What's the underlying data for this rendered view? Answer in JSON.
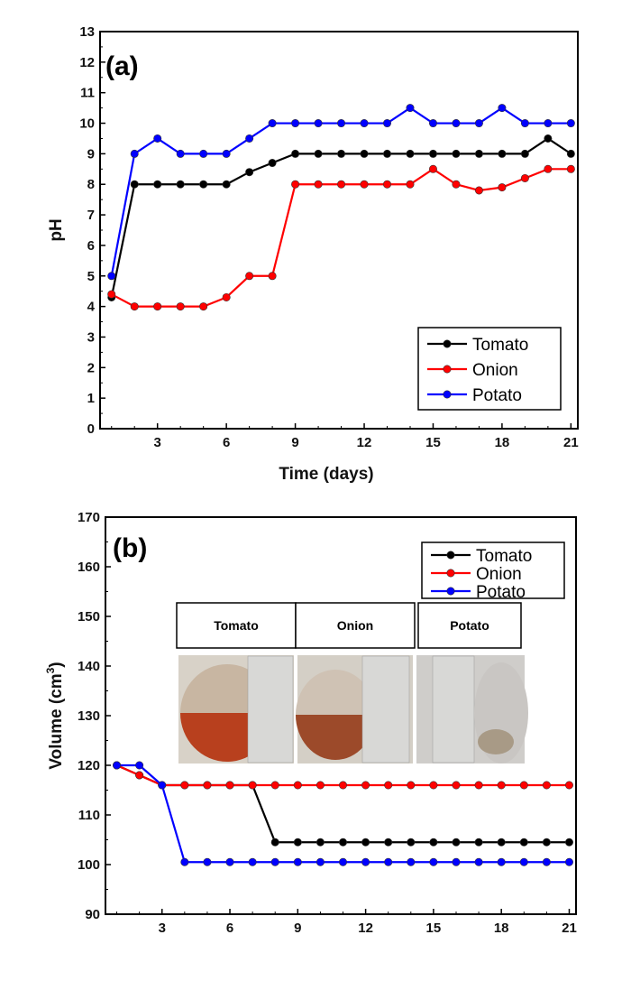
{
  "chart_data": [
    {
      "type": "line",
      "panel_label": "(a)",
      "xlabel": "Time (days)",
      "ylabel": "pH",
      "xlim": [
        0.5,
        21.3
      ],
      "ylim": [
        0,
        13
      ],
      "xticks": [
        3,
        6,
        9,
        12,
        15,
        18,
        21
      ],
      "yticks": [
        0,
        1,
        2,
        3,
        4,
        5,
        6,
        7,
        8,
        9,
        10,
        11,
        12,
        13
      ],
      "legend_position": "bottom-right",
      "grid": false,
      "x": [
        1,
        2,
        3,
        4,
        5,
        6,
        7,
        8,
        9,
        10,
        11,
        12,
        13,
        14,
        15,
        16,
        17,
        18,
        19,
        20,
        21
      ],
      "series": [
        {
          "name": "Tomato",
          "color": "#000000",
          "values": [
            4.3,
            8,
            8,
            8,
            8,
            8,
            8.4,
            8.7,
            9,
            9,
            9,
            9,
            9,
            9,
            9,
            9,
            9,
            9,
            9,
            9.5,
            9
          ]
        },
        {
          "name": "Onion",
          "color": "#ff0000",
          "values": [
            4.4,
            4,
            4,
            4,
            4,
            4.3,
            5,
            5,
            8,
            8,
            8,
            8,
            8,
            8,
            8.5,
            8,
            7.8,
            7.9,
            8.2,
            8.5,
            8.5
          ]
        },
        {
          "name": "Potato",
          "color": "#0000ff",
          "values": [
            5,
            9,
            9.5,
            9,
            9,
            9,
            9.5,
            10,
            10,
            10,
            10,
            10,
            10,
            10.5,
            10,
            10,
            10,
            10.5,
            10,
            10,
            10
          ]
        }
      ]
    },
    {
      "type": "line",
      "panel_label": "(b)",
      "xlabel": "",
      "ylabel": "Volume (cm",
      "ylabel_sup": "3",
      "ylabel_close": ")",
      "xlim": [
        0.5,
        21.3
      ],
      "ylim": [
        90,
        170
      ],
      "xticks": [
        3,
        6,
        9,
        12,
        15,
        18,
        21
      ],
      "yticks": [
        90,
        100,
        110,
        120,
        130,
        140,
        150,
        160,
        170
      ],
      "legend_position": "top-right",
      "grid": false,
      "x": [
        1,
        2,
        3,
        4,
        5,
        6,
        7,
        8,
        9,
        10,
        11,
        12,
        13,
        14,
        15,
        16,
        17,
        18,
        19,
        20,
        21
      ],
      "series": [
        {
          "name": "Tomato",
          "color": "#000000",
          "values": [
            120,
            118,
            116,
            116,
            116,
            116,
            116,
            104.5,
            104.5,
            104.5,
            104.5,
            104.5,
            104.5,
            104.5,
            104.5,
            104.5,
            104.5,
            104.5,
            104.5,
            104.5,
            104.5
          ]
        },
        {
          "name": "Onion",
          "color": "#ff0000",
          "values": [
            120,
            118,
            116,
            116,
            116,
            116,
            116,
            116,
            116,
            116,
            116,
            116,
            116,
            116,
            116,
            116,
            116,
            116,
            116,
            116,
            116
          ]
        },
        {
          "name": "Potato",
          "color": "#0000ff",
          "values": [
            120,
            120,
            116,
            100.5,
            100.5,
            100.5,
            100.5,
            100.5,
            100.5,
            100.5,
            100.5,
            100.5,
            100.5,
            100.5,
            100.5,
            100.5,
            100.5,
            100.5,
            100.5,
            100.5,
            100.5
          ]
        }
      ],
      "inset": {
        "labels": [
          "Tomato",
          "Onion",
          "Potato"
        ],
        "photo_colors": {
          "tomato_base": "#c8b6a2",
          "tomato_fill": "#b8401e",
          "onion_base": "#cfc2b4",
          "onion_fill": "#9c4a2a",
          "potato_base": "#c9c6c3",
          "potato_fill": "#a89a86",
          "ruler": "#d8d8d6"
        }
      }
    }
  ]
}
